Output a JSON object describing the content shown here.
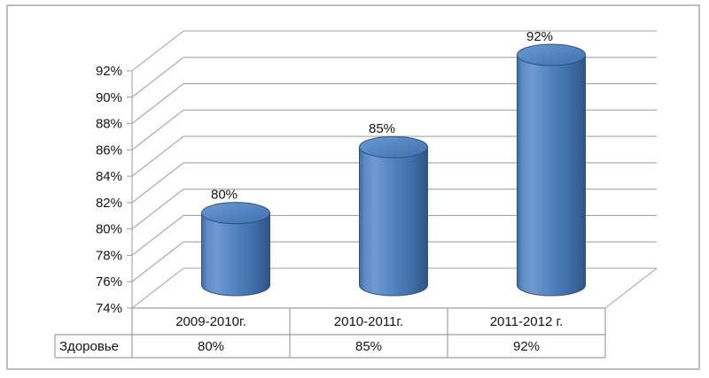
{
  "chart_data": {
    "type": "bar",
    "subtype": "3d-cylinder",
    "title": "",
    "categories": [
      "2009-2010г.",
      "2010-2011г.",
      "2011-2012 г."
    ],
    "series": [
      {
        "name": "Здоровье",
        "values": [
          80,
          85,
          92
        ]
      }
    ],
    "data_labels": [
      "80%",
      "85%",
      "92%"
    ],
    "y_ticks": [
      74,
      76,
      78,
      80,
      82,
      84,
      86,
      88,
      90,
      92
    ],
    "y_tick_labels": [
      "74%",
      "76%",
      "78%",
      "80%",
      "82%",
      "84%",
      "86%",
      "88%",
      "90%",
      "92%"
    ],
    "ylim": [
      74,
      92
    ],
    "grid": true,
    "legend_position": "none",
    "colors": {
      "cylinder_main": "#4f81bd",
      "cylinder_light": "#6f9ad1",
      "cylinder_dark": "#2e5485",
      "gridline": "#a3a3a3",
      "table_border": "#9e9e9e",
      "text": "#151515",
      "frame_border": "#bdbdbd",
      "background": "#ffffff"
    }
  },
  "data_table": {
    "row_header": "Здоровье",
    "columns": [
      "2009-2010г.",
      "2010-2011г.",
      "2011-2012 г."
    ],
    "values": [
      "80%",
      "85%",
      "92%"
    ]
  }
}
